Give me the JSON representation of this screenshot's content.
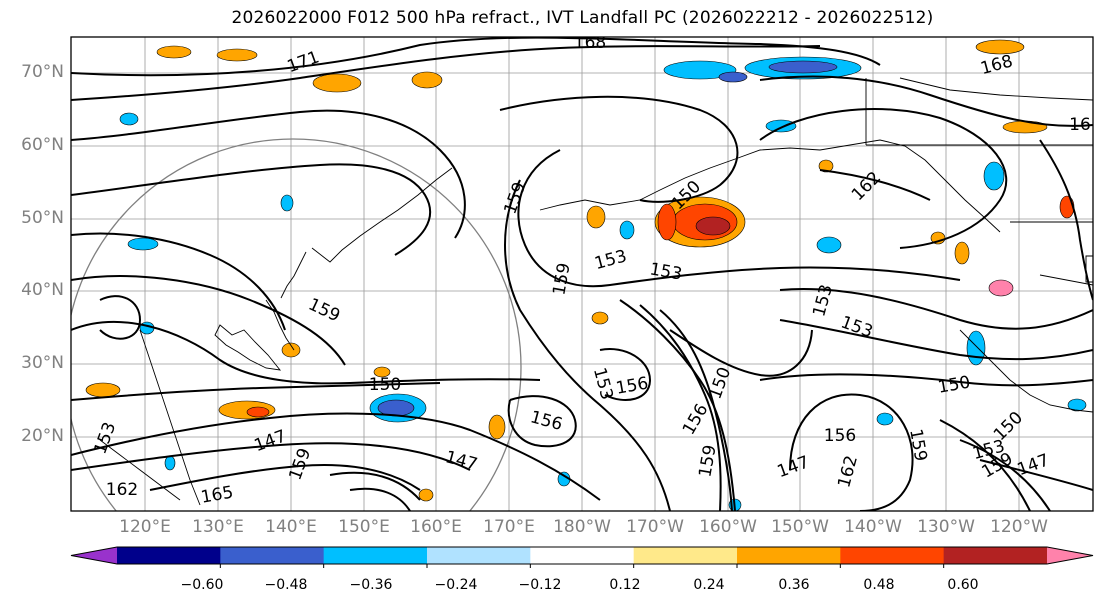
{
  "title": "2026022000 F012 500 hPa refract., IVT Landfall PC (2026022212 - 2026022512)",
  "latitude_labels": [
    "70°N",
    "60°N",
    "50°N",
    "40°N",
    "30°N",
    "20°N"
  ],
  "longitude_labels": [
    "120°E",
    "130°E",
    "140°E",
    "150°E",
    "160°E",
    "170°E",
    "180°W",
    "170°W",
    "160°W",
    "150°W",
    "140°W",
    "130°W",
    "120°W"
  ],
  "contour_labels": [
    "168",
    "171",
    "168",
    "16",
    "159",
    "162",
    "153",
    "153",
    "159",
    "159",
    "153",
    "153",
    "150",
    "156",
    "156",
    "153",
    "150",
    "150",
    "156",
    "147",
    "159",
    "147",
    "153",
    "162",
    "165",
    "159",
    "147",
    "162",
    "159",
    "150",
    "159",
    "153",
    "156",
    "150",
    "147"
  ],
  "colorbar": {
    "ticks": [
      "−0.60",
      "−0.48",
      "−0.36",
      "−0.24",
      "−0.12",
      "0.12",
      "0.24",
      "0.36",
      "0.48",
      "0.60"
    ],
    "colors": [
      "#9932cc",
      "#00008b",
      "#3a5fcd",
      "#00bfff",
      "#b0e2ff",
      "#ffffff",
      "#ffe98a",
      "#ffa500",
      "#ff4500",
      "#b22222",
      "#ff82ab"
    ]
  }
}
